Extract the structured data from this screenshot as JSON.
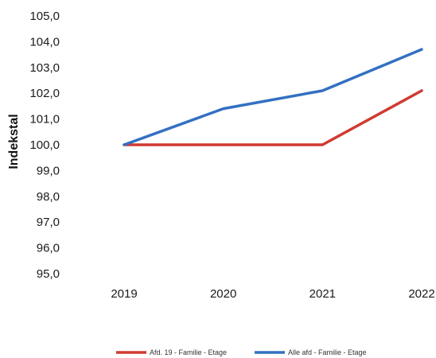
{
  "chart_data": {
    "type": "line",
    "categories": [
      "2019",
      "2020",
      "2021",
      "2022"
    ],
    "series": [
      {
        "name": "Afd. 19 - Familie - Etage",
        "color": "#d03a32",
        "values": [
          100.0,
          100.0,
          100.0,
          102.1
        ]
      },
      {
        "name": "Alle afd - Familie - Etage",
        "color": "#3370c2",
        "values": [
          100.0,
          101.4,
          102.1,
          103.7
        ]
      }
    ],
    "ylabel": "Indekstal",
    "ylim": [
      95.0,
      105.0
    ],
    "yticks": [
      "95,0",
      "96,0",
      "97,0",
      "98,0",
      "99,0",
      "100,0",
      "101,0",
      "102,0",
      "103,0",
      "104,0",
      "105,0"
    ],
    "grid": false,
    "legend": "bottom"
  }
}
